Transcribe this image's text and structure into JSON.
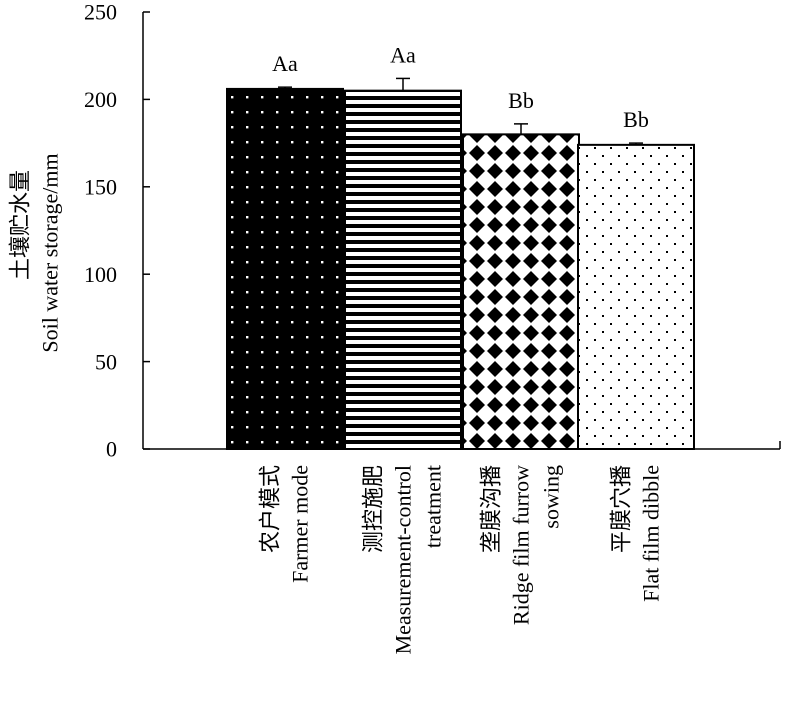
{
  "chart_data": {
    "type": "bar",
    "ylabel_cn": "土壤贮水量",
    "ylabel_en": "Soil water storage/mm",
    "ylim": [
      0,
      250
    ],
    "yticks": [
      "0",
      "50",
      "100",
      "150",
      "200",
      "250"
    ],
    "categories": [
      {
        "cn": "农户模式",
        "en": [
          "Farmer mode"
        ]
      },
      {
        "cn": "测控施肥",
        "en": [
          "Measurement-control",
          "treatment"
        ]
      },
      {
        "cn": "垄膜沟播",
        "en": [
          "Ridge film furrow",
          "sowing"
        ]
      },
      {
        "cn": "平膜穴播",
        "en": [
          "Flat film dibble"
        ]
      }
    ],
    "values": [
      206,
      205,
      180,
      174
    ],
    "errors": [
      1,
      7,
      6,
      1
    ],
    "significance": [
      "Aa",
      "Aa",
      "Bb",
      "Bb"
    ],
    "patterns": [
      "dots-on-black",
      "horizontal-stripes",
      "diamond-checker",
      "sparse-dots"
    ]
  }
}
